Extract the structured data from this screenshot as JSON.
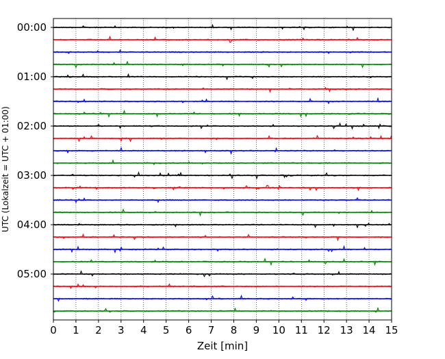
{
  "chart_data": {
    "type": "line",
    "title": "",
    "xlabel": "Zeit  [min]",
    "ylabel": "UTC (Lokalzeit = UTC + 01:00)",
    "xlim": [
      0,
      15
    ],
    "x_ticks": [
      "0",
      "1",
      "2",
      "3",
      "4",
      "5",
      "6",
      "7",
      "8",
      "9",
      "10",
      "11",
      "12",
      "13",
      "14",
      "15"
    ],
    "y_ticks": [
      "00:00",
      "01:00",
      "02:00",
      "03:00",
      "04:00",
      "05:00"
    ],
    "grid": "vertical dotted lines at each minute",
    "trace_interval_min": 15,
    "trace_colors": [
      "#000000",
      "#ff0000",
      "#0000ff",
      "#008000"
    ],
    "trace_count": 24,
    "first_trace": "00:00",
    "last_trace": "05:45",
    "note_source": "helicorder-style seismogram, traces not individually labelled"
  }
}
